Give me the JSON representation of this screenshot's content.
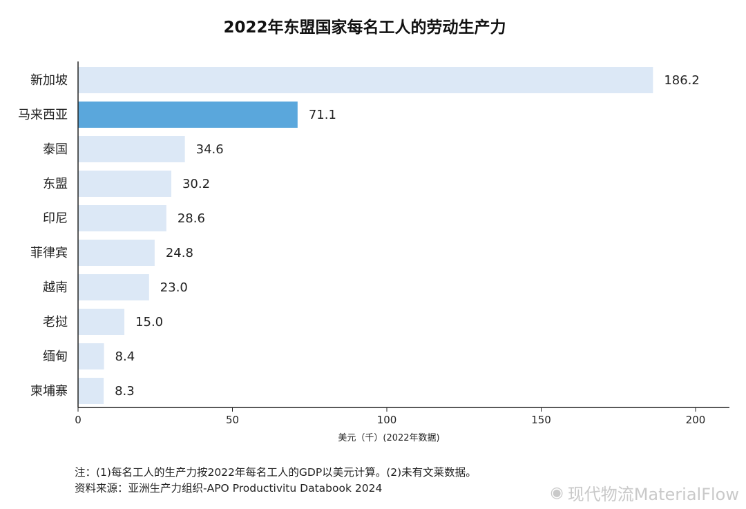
{
  "chart_data": {
    "type": "bar",
    "orientation": "horizontal",
    "title": "2022年东盟国家每名工人的劳动生产力",
    "categories": [
      "新加坡",
      "马来西亚",
      "泰国",
      "东盟",
      "印尼",
      "菲律宾",
      "越南",
      "老挝",
      "缅甸",
      "柬埔寨"
    ],
    "values": [
      186.2,
      71.1,
      34.6,
      30.2,
      28.6,
      24.8,
      23.0,
      15.0,
      8.4,
      8.3
    ],
    "value_labels": [
      "186.2",
      "71.1",
      "34.6",
      "30.2",
      "28.6",
      "24.8",
      "23.0",
      "15.0",
      "8.4",
      "8.3"
    ],
    "highlight": "马来西亚",
    "xlabel": "美元（千）(2022年数据)",
    "xlim": [
      0,
      200
    ],
    "xticks": [
      0,
      50,
      100,
      150,
      200
    ],
    "xtick_labels": [
      "0",
      "50",
      "100",
      "150",
      "200"
    ],
    "grid": false,
    "colors": {
      "bar": "#dce8f6",
      "highlight": "#5aa7dc"
    }
  },
  "notes": {
    "line1": "注：(1)每名工人的生产力按2022年每名工人的GDP以美元计算。(2)未有文莱数据。",
    "line2": "资料来源：亚洲生产力组织-APO Productivitu Databook 2024"
  },
  "watermark": {
    "icon": "weibo-icon",
    "text": "现代物流MaterialFlow"
  }
}
